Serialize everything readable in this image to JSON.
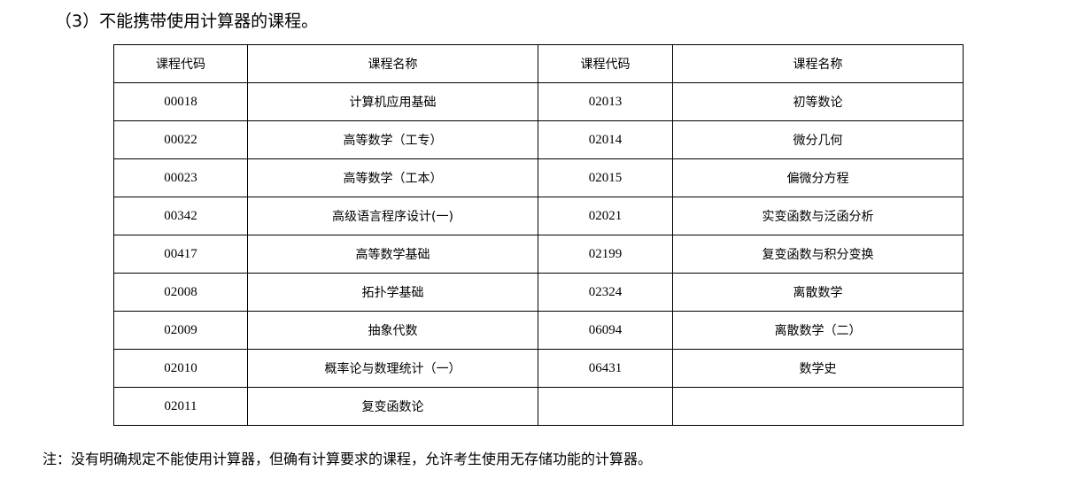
{
  "heading": "（3）不能携带使用计算器的课程。",
  "table": {
    "headers": [
      "课程代码",
      "课程名称",
      "课程代码",
      "课程名称"
    ],
    "rows": [
      [
        "00018",
        "计算机应用基础",
        "02013",
        "初等数论"
      ],
      [
        "00022",
        "高等数学（工专）",
        "02014",
        "微分几何"
      ],
      [
        "00023",
        "高等数学（工本）",
        "02015",
        "偏微分方程"
      ],
      [
        "00342",
        "高级语言程序设计(一)",
        "02021",
        "实变函数与泛函分析"
      ],
      [
        "00417",
        "高等数学基础",
        "02199",
        "复变函数与积分变换"
      ],
      [
        "02008",
        "拓扑学基础",
        "02324",
        "离散数学"
      ],
      [
        "02009",
        "抽象代数",
        "06094",
        "离散数学（二）"
      ],
      [
        "02010",
        "概率论与数理统计（一）",
        "06431",
        "数学史"
      ],
      [
        "02011",
        "复变函数论",
        "",
        ""
      ]
    ]
  },
  "note": "注：没有明确规定不能使用计算器，但确有计算要求的课程，允许考生使用无存储功能的计算器。"
}
